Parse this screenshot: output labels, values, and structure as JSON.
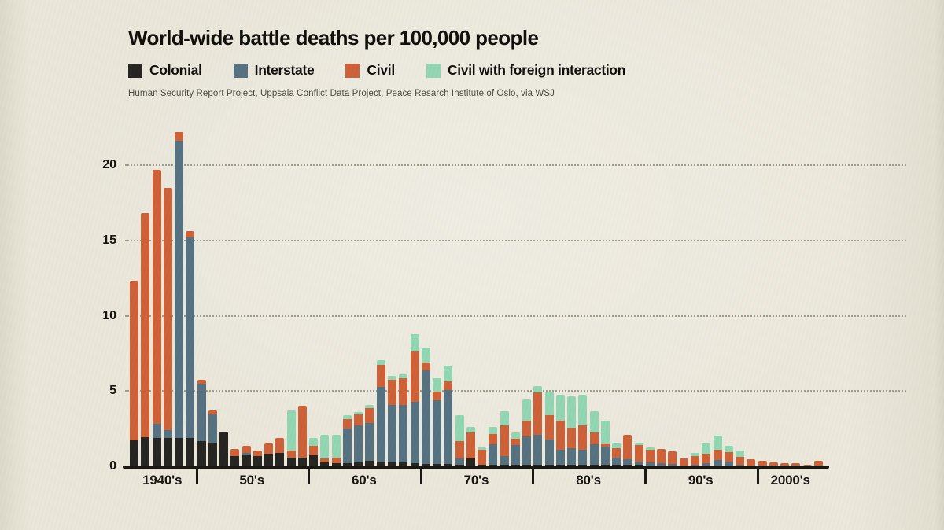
{
  "page": {
    "background": "#e9e6d9"
  },
  "header": {
    "title": "World-wide battle deaths per 100,000 people",
    "source": "Human Security Report Project, Uppsala Conflict Data Project, Peace Resarch Institute of Oslo, via WSJ"
  },
  "legend": [
    {
      "label": "Colonial",
      "color": "#24231e"
    },
    {
      "label": "Interstate",
      "color": "#54707f"
    },
    {
      "label": "Civil",
      "color": "#cd5f36"
    },
    {
      "label": "Civil with foreign interaction",
      "color": "#90d5b1"
    }
  ],
  "chart_data": {
    "type": "bar",
    "stacked": true,
    "title": "World-wide battle deaths per 100,000 people",
    "xlabel": "",
    "ylabel": "",
    "ylim": [
      0,
      22.5
    ],
    "y_ticks": [
      0,
      5,
      10,
      15,
      20
    ],
    "grid": "horizontal dotted",
    "legend_position": "top",
    "series_order": [
      "colonial",
      "interstate",
      "civil",
      "civil_foreign"
    ],
    "decades": [
      {
        "label": "1940's",
        "start": 0,
        "count": 6
      },
      {
        "label": "50's",
        "start": 6,
        "count": 10
      },
      {
        "label": "60's",
        "start": 16,
        "count": 10
      },
      {
        "label": "70's",
        "start": 26,
        "count": 10
      },
      {
        "label": "80's",
        "start": 36,
        "count": 10
      },
      {
        "label": "90's",
        "start": 46,
        "count": 10
      },
      {
        "label": "2000's",
        "start": 56,
        "count": 6
      }
    ],
    "bars": [
      [
        1.7,
        0,
        10.6,
        0
      ],
      [
        1.95,
        0,
        14.85,
        0
      ],
      [
        1.9,
        0.9,
        16.9,
        0
      ],
      [
        1.9,
        0.5,
        16.1,
        0
      ],
      [
        1.9,
        19.7,
        0.6,
        0
      ],
      [
        1.9,
        13.3,
        0.4,
        0
      ],
      [
        1.65,
        3.85,
        0.25,
        0
      ],
      [
        1.55,
        1.9,
        0.25,
        0
      ],
      [
        2.3,
        0,
        0,
        0
      ],
      [
        0.7,
        0,
        0.45,
        0
      ],
      [
        0.8,
        0.1,
        0.45,
        0
      ],
      [
        0.7,
        0,
        0.35,
        0
      ],
      [
        0.85,
        0,
        0.7,
        0
      ],
      [
        0.9,
        0,
        1.0,
        0
      ],
      [
        0.6,
        0,
        0.45,
        2.65
      ],
      [
        0.6,
        0,
        3.4,
        0
      ],
      [
        0.75,
        0,
        0.6,
        0.55
      ],
      [
        0.25,
        0,
        0.25,
        1.6
      ],
      [
        0.2,
        0,
        0.35,
        1.55
      ],
      [
        0.2,
        2.3,
        0.65,
        0.25
      ],
      [
        0.25,
        2.45,
        0.75,
        0.15
      ],
      [
        0.35,
        2.5,
        1.0,
        0.25
      ],
      [
        0.3,
        5.0,
        1.45,
        0.3
      ],
      [
        0.25,
        3.8,
        1.7,
        0.25
      ],
      [
        0.25,
        3.85,
        1.75,
        0.25
      ],
      [
        0.2,
        4.1,
        3.3,
        1.15
      ],
      [
        0.15,
        6.2,
        0.55,
        1.0
      ],
      [
        0.15,
        4.25,
        0.55,
        0.9
      ],
      [
        0.15,
        4.9,
        0.6,
        1.05
      ],
      [
        0.1,
        0.4,
        1.15,
        1.75
      ],
      [
        0.5,
        0,
        1.75,
        0.35
      ],
      [
        0.1,
        0,
        1.0,
        0.15
      ],
      [
        0.1,
        1.35,
        0.7,
        0.45
      ],
      [
        0.1,
        0.6,
        2.0,
        0.95
      ],
      [
        0.1,
        1.3,
        0.45,
        0.4
      ],
      [
        0.1,
        1.9,
        1.05,
        1.4
      ],
      [
        0.1,
        2.0,
        2.8,
        0.45
      ],
      [
        0.1,
        1.7,
        1.6,
        1.55
      ],
      [
        0.1,
        1.0,
        1.95,
        1.7
      ],
      [
        0.1,
        1.1,
        1.35,
        2.1
      ],
      [
        0.1,
        1.0,
        1.6,
        2.05
      ],
      [
        0.1,
        1.35,
        0.8,
        1.4
      ],
      [
        0.1,
        1.2,
        0.2,
        1.55
      ],
      [
        0.1,
        0.5,
        0.6,
        0.35
      ],
      [
        0.1,
        0.35,
        1.65,
        0
      ],
      [
        0.1,
        0.2,
        1.1,
        0.15
      ],
      [
        0.05,
        0.2,
        0.85,
        0.15
      ],
      [
        0.05,
        0.15,
        0.95,
        0
      ],
      [
        0.05,
        0.1,
        0.85,
        0
      ],
      [
        0.05,
        0,
        0.45,
        0
      ],
      [
        0.05,
        0.05,
        0.6,
        0.2
      ],
      [
        0.05,
        0.15,
        0.65,
        0.7
      ],
      [
        0.05,
        0.35,
        0.7,
        0.95
      ],
      [
        0.05,
        0.25,
        0.65,
        0.4
      ],
      [
        0.05,
        0.05,
        0.55,
        0.4
      ],
      [
        0.05,
        0,
        0.4,
        0
      ],
      [
        0,
        0,
        0.35,
        0
      ],
      [
        0,
        0,
        0.25,
        0
      ],
      [
        0,
        0,
        0.2,
        0
      ],
      [
        0,
        0,
        0.2,
        0
      ],
      [
        0,
        0,
        0.1,
        0
      ],
      [
        0,
        0,
        0.35,
        0
      ]
    ]
  }
}
